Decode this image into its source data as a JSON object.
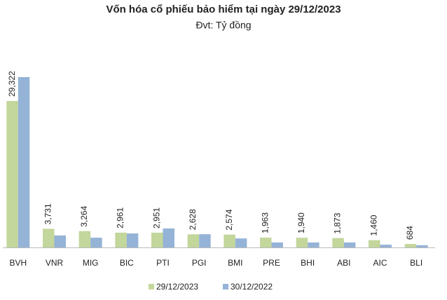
{
  "chart_data": {
    "type": "bar",
    "title": "Vốn hóa cổ phiếu bảo hiểm tại ngày 29/12/2023",
    "subtitle": "Đvt: Tỷ đồng",
    "categories": [
      "BVH",
      "VNR",
      "MIG",
      "BIC",
      "PTI",
      "PGI",
      "BMI",
      "PRE",
      "BHI",
      "ABI",
      "AIC",
      "BLI"
    ],
    "series": [
      {
        "name": "29/12/2023",
        "color": "#c3d69b",
        "values": [
          29322,
          3731,
          3264,
          2961,
          2951,
          2628,
          2574,
          1963,
          1940,
          1873,
          1460,
          684
        ],
        "value_labels": [
          "29,322",
          "3,731",
          "3,264",
          "2,961",
          "2,951",
          "2,628",
          "2,574",
          "1,963",
          "1,940",
          "1,873",
          "1,460",
          "684"
        ]
      },
      {
        "name": "30/12/2022",
        "color": "#95b3d7",
        "values": [
          34100,
          2400,
          1950,
          2800,
          3800,
          2650,
          1800,
          1000,
          1000,
          1000,
          550,
          450
        ]
      }
    ]
  }
}
